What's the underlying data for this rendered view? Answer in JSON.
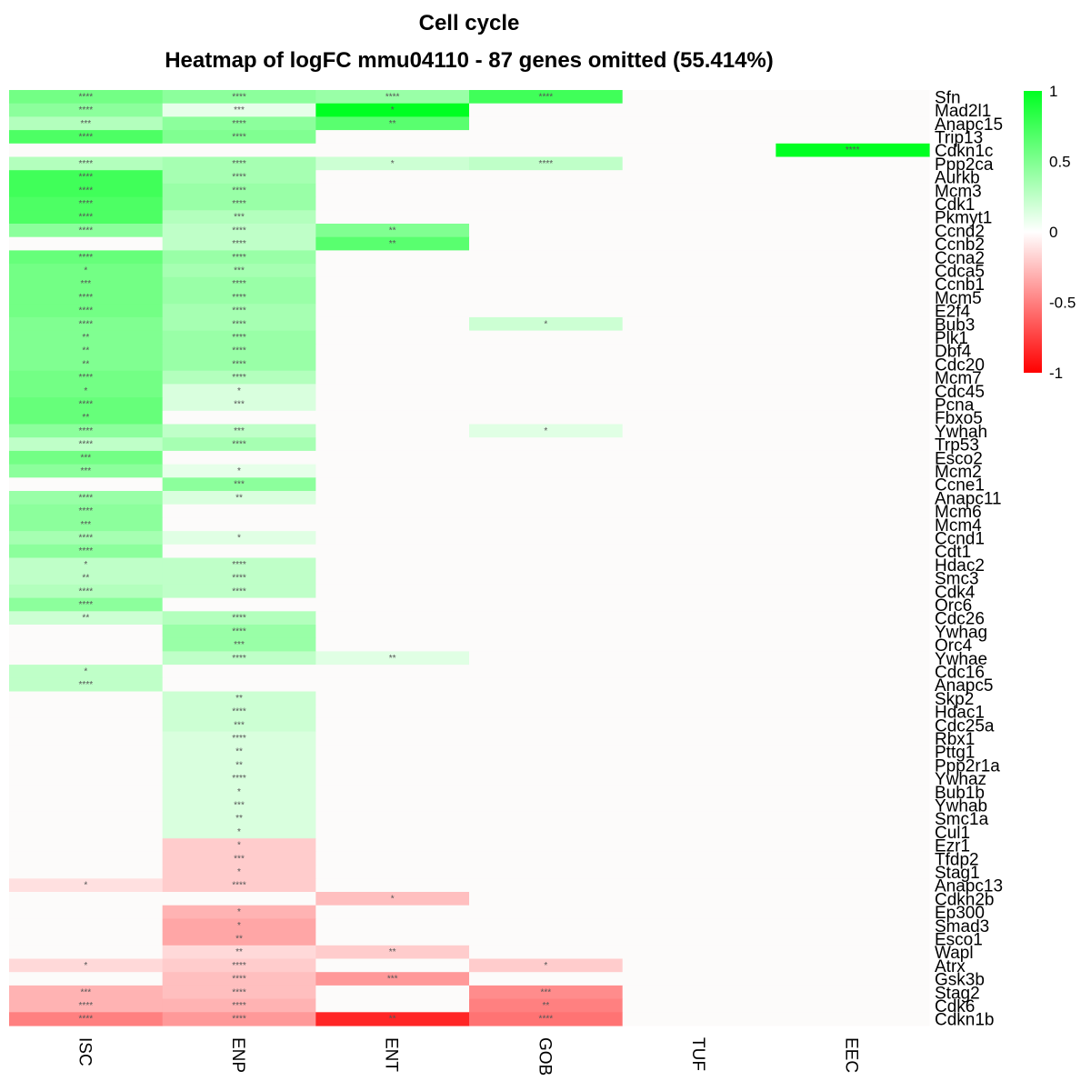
{
  "chart_data": {
    "type": "heatmap",
    "title": "Cell cycle",
    "subtitle": "Heatmap of logFC mmu04110 - 87 genes omitted (55.414%)",
    "columns": [
      "ISC",
      "ENP",
      "ENT",
      "GOB",
      "TUF",
      "EEC"
    ],
    "rows": [
      "Sfn",
      "Mad2l1",
      "Anapc15",
      "Trip13",
      "Cdkn1c",
      "Ppp2ca",
      "Aurkb",
      "Mcm3",
      "Cdk1",
      "Pkmyt1",
      "Ccnd2",
      "Ccnb2",
      "Ccna2",
      "Cdca5",
      "Ccnb1",
      "Mcm5",
      "E2f4",
      "Bub3",
      "Plk1",
      "Dbf4",
      "Cdc20",
      "Mcm7",
      "Cdc45",
      "Pcna",
      "Fbxo5",
      "Ywhah",
      "Trp53",
      "Esco2",
      "Mcm2",
      "Ccne1",
      "Anapc11",
      "Mcm6",
      "Mcm4",
      "Ccnd1",
      "Cdt1",
      "Hdac2",
      "Smc3",
      "Cdk4",
      "Orc6",
      "Cdc26",
      "Ywhag",
      "Orc4",
      "Ywhae",
      "Cdc16",
      "Anapc5",
      "Skp2",
      "Hdac1",
      "Cdc25a",
      "Rbx1",
      "Pttg1",
      "Ppp2r1a",
      "Ywhaz",
      "Bub1b",
      "Ywhab",
      "Smc1a",
      "Cul1",
      "Ezr1",
      "Tfdp2",
      "Stag1",
      "Anapc13",
      "Cdkn2b",
      "Ep300",
      "Smad3",
      "Esco1",
      "Wapl",
      "Atrx",
      "Gsk3b",
      "Stag2",
      "Cdk6",
      "Cdkn1b"
    ],
    "values": [
      [
        0.55,
        0.45,
        0.4,
        0.75,
        0,
        0
      ],
      [
        0.45,
        0.1,
        1.0,
        0,
        0,
        0
      ],
      [
        0.3,
        0.45,
        0.65,
        0,
        0,
        0
      ],
      [
        0.7,
        0.5,
        0,
        0,
        0,
        0
      ],
      [
        0,
        0,
        0,
        0,
        0,
        1.0
      ],
      [
        0.3,
        0.35,
        0.2,
        0.25,
        0,
        0
      ],
      [
        0.75,
        0.35,
        0,
        0,
        0,
        0
      ],
      [
        0.75,
        0.4,
        0,
        0,
        0,
        0
      ],
      [
        0.7,
        0.4,
        0,
        0,
        0,
        0
      ],
      [
        0.7,
        0.3,
        0,
        0,
        0,
        0
      ],
      [
        0.45,
        0.25,
        0.5,
        0,
        0,
        0
      ],
      [
        0,
        0.25,
        0.65,
        0,
        0,
        0
      ],
      [
        0.6,
        0.4,
        0,
        0,
        0,
        0
      ],
      [
        0.55,
        0.35,
        0,
        0,
        0,
        0
      ],
      [
        0.55,
        0.4,
        0,
        0,
        0,
        0
      ],
      [
        0.55,
        0.4,
        0,
        0,
        0,
        0
      ],
      [
        0.55,
        0.35,
        0,
        0,
        0,
        0
      ],
      [
        0.5,
        0.35,
        0,
        0.2,
        0,
        0
      ],
      [
        0.5,
        0.4,
        0,
        0,
        0,
        0
      ],
      [
        0.5,
        0.4,
        0,
        0,
        0,
        0
      ],
      [
        0.5,
        0.4,
        0,
        0,
        0,
        0
      ],
      [
        0.55,
        0.3,
        0,
        0,
        0,
        0
      ],
      [
        0.55,
        0.15,
        0,
        0,
        0,
        0
      ],
      [
        0.6,
        0.15,
        0,
        0,
        0,
        0
      ],
      [
        0.6,
        0,
        0,
        0,
        0,
        0
      ],
      [
        0.45,
        0.25,
        0,
        0.12,
        0,
        0
      ],
      [
        0.25,
        0.35,
        0,
        0,
        0,
        0
      ],
      [
        0.55,
        0,
        0,
        0,
        0,
        0
      ],
      [
        0.45,
        0.1,
        0,
        0,
        0,
        0
      ],
      [
        0,
        0.45,
        0,
        0,
        0,
        0
      ],
      [
        0.4,
        0.15,
        0,
        0,
        0,
        0
      ],
      [
        0.45,
        0,
        0,
        0,
        0,
        0
      ],
      [
        0.45,
        0,
        0,
        0,
        0,
        0
      ],
      [
        0.35,
        0.12,
        0,
        0,
        0,
        0
      ],
      [
        0.45,
        0,
        0,
        0,
        0,
        0
      ],
      [
        0.25,
        0.25,
        0,
        0,
        0,
        0
      ],
      [
        0.25,
        0.25,
        0,
        0,
        0,
        0
      ],
      [
        0.3,
        0.25,
        0,
        0,
        0,
        0
      ],
      [
        0.45,
        0,
        0,
        0,
        0,
        0
      ],
      [
        0.2,
        0.3,
        0,
        0,
        0,
        0
      ],
      [
        0,
        0.4,
        0,
        0,
        0,
        0
      ],
      [
        0,
        0.4,
        0,
        0,
        0,
        0
      ],
      [
        0,
        0.25,
        0.12,
        0,
        0,
        0
      ],
      [
        0.25,
        0,
        0,
        0,
        0,
        0
      ],
      [
        0.25,
        0,
        0,
        0,
        0,
        0
      ],
      [
        0,
        0.2,
        0,
        0,
        0,
        0
      ],
      [
        0,
        0.2,
        0,
        0,
        0,
        0
      ],
      [
        0,
        0.2,
        0,
        0,
        0,
        0
      ],
      [
        0,
        0.15,
        0,
        0,
        0,
        0
      ],
      [
        0,
        0.15,
        0,
        0,
        0,
        0
      ],
      [
        0,
        0.15,
        0,
        0,
        0,
        0
      ],
      [
        0,
        0.15,
        0,
        0,
        0,
        0
      ],
      [
        0,
        0.15,
        0,
        0,
        0,
        0
      ],
      [
        0,
        0.15,
        0,
        0,
        0,
        0
      ],
      [
        0,
        0.15,
        0,
        0,
        0,
        0
      ],
      [
        0,
        0.15,
        0,
        0,
        0,
        0
      ],
      [
        0,
        -0.2,
        0,
        0,
        0,
        0
      ],
      [
        0,
        -0.2,
        0,
        0,
        0,
        0
      ],
      [
        0,
        -0.2,
        0,
        0,
        0,
        0
      ],
      [
        -0.12,
        -0.2,
        0,
        0,
        0,
        0
      ],
      [
        0,
        0,
        -0.25,
        0,
        0,
        0
      ],
      [
        0,
        -0.3,
        0,
        0,
        0,
        0
      ],
      [
        0,
        -0.35,
        0,
        0,
        0,
        0
      ],
      [
        0,
        -0.35,
        0,
        0,
        0,
        0
      ],
      [
        0,
        -0.15,
        -0.2,
        0,
        0,
        0
      ],
      [
        -0.15,
        -0.2,
        0,
        -0.2,
        0,
        0
      ],
      [
        0,
        -0.25,
        -0.4,
        0,
        0,
        0
      ],
      [
        -0.3,
        -0.25,
        0,
        -0.45,
        0,
        0
      ],
      [
        -0.3,
        -0.3,
        0,
        -0.5,
        0,
        0
      ],
      [
        -0.5,
        -0.4,
        -0.85,
        -0.55,
        0,
        0
      ]
    ],
    "significance": [
      [
        "****",
        "****",
        "****",
        "****",
        "",
        ""
      ],
      [
        "****",
        "***",
        "*",
        "",
        "",
        ""
      ],
      [
        "***",
        "****",
        "**",
        "",
        "",
        ""
      ],
      [
        "****",
        "****",
        "",
        "",
        "",
        ""
      ],
      [
        "",
        "",
        "",
        "",
        "",
        "****"
      ],
      [
        "****",
        "****",
        "*",
        "****",
        "",
        ""
      ],
      [
        "****",
        "****",
        "",
        "",
        "",
        ""
      ],
      [
        "****",
        "****",
        "",
        "",
        "",
        ""
      ],
      [
        "****",
        "****",
        "",
        "",
        "",
        ""
      ],
      [
        "****",
        "***",
        "",
        "",
        "",
        ""
      ],
      [
        "****",
        "****",
        "**",
        "",
        "",
        ""
      ],
      [
        "",
        "****",
        "**",
        "",
        "",
        ""
      ],
      [
        "****",
        "****",
        "",
        "",
        "",
        ""
      ],
      [
        "*",
        "***",
        "",
        "",
        "",
        ""
      ],
      [
        "***",
        "****",
        "",
        "",
        "",
        ""
      ],
      [
        "****",
        "****",
        "",
        "",
        "",
        ""
      ],
      [
        "****",
        "****",
        "",
        "",
        "",
        ""
      ],
      [
        "****",
        "****",
        "",
        "*",
        "",
        ""
      ],
      [
        "**",
        "****",
        "",
        "",
        "",
        ""
      ],
      [
        "**",
        "****",
        "",
        "",
        "",
        ""
      ],
      [
        "**",
        "****",
        "",
        "",
        "",
        ""
      ],
      [
        "****",
        "****",
        "",
        "",
        "",
        ""
      ],
      [
        "*",
        "*",
        "",
        "",
        "",
        ""
      ],
      [
        "****",
        "***",
        "",
        "",
        "",
        ""
      ],
      [
        "**",
        "",
        "",
        "",
        "",
        ""
      ],
      [
        "****",
        "***",
        "",
        "*",
        "",
        ""
      ],
      [
        "****",
        "****",
        "",
        "",
        "",
        ""
      ],
      [
        "***",
        "",
        "",
        "",
        "",
        ""
      ],
      [
        "***",
        "*",
        "",
        "",
        "",
        ""
      ],
      [
        "",
        "***",
        "",
        "",
        "",
        ""
      ],
      [
        "****",
        "**",
        "",
        "",
        "",
        ""
      ],
      [
        "****",
        "",
        "",
        "",
        "",
        ""
      ],
      [
        "***",
        "",
        "",
        "",
        "",
        ""
      ],
      [
        "****",
        "*",
        "",
        "",
        "",
        ""
      ],
      [
        "****",
        "",
        "",
        "",
        "",
        ""
      ],
      [
        "*",
        "****",
        "",
        "",
        "",
        ""
      ],
      [
        "**",
        "****",
        "",
        "",
        "",
        ""
      ],
      [
        "****",
        "****",
        "",
        "",
        "",
        ""
      ],
      [
        "****",
        "",
        "",
        "",
        "",
        ""
      ],
      [
        "**",
        "****",
        "",
        "",
        "",
        ""
      ],
      [
        "",
        "****",
        "",
        "",
        "",
        ""
      ],
      [
        "",
        "***",
        "",
        "",
        "",
        ""
      ],
      [
        "",
        "****",
        "**",
        "",
        "",
        ""
      ],
      [
        "*",
        "",
        "",
        "",
        "",
        ""
      ],
      [
        "****",
        "",
        "",
        "",
        "",
        ""
      ],
      [
        "",
        "**",
        "",
        "",
        "",
        ""
      ],
      [
        "",
        "****",
        "",
        "",
        "",
        ""
      ],
      [
        "",
        "***",
        "",
        "",
        "",
        ""
      ],
      [
        "",
        "****",
        "",
        "",
        "",
        ""
      ],
      [
        "",
        "**",
        "",
        "",
        "",
        ""
      ],
      [
        "",
        "**",
        "",
        "",
        "",
        ""
      ],
      [
        "",
        "****",
        "",
        "",
        "",
        ""
      ],
      [
        "",
        "*",
        "",
        "",
        "",
        ""
      ],
      [
        "",
        "***",
        "",
        "",
        "",
        ""
      ],
      [
        "",
        "**",
        "",
        "",
        "",
        ""
      ],
      [
        "",
        "*",
        "",
        "",
        "",
        ""
      ],
      [
        "",
        "*",
        "",
        "",
        "",
        ""
      ],
      [
        "",
        "***",
        "",
        "",
        "",
        ""
      ],
      [
        "",
        "*",
        "",
        "",
        "",
        ""
      ],
      [
        "*",
        "****",
        "",
        "",
        "",
        ""
      ],
      [
        "",
        "",
        "*",
        "",
        "",
        ""
      ],
      [
        "",
        "*",
        "",
        "",
        "",
        ""
      ],
      [
        "",
        "*",
        "",
        "",
        "",
        ""
      ],
      [
        "",
        "**",
        "",
        "",
        "",
        ""
      ],
      [
        "",
        "**",
        "**",
        "",
        "",
        ""
      ],
      [
        "*",
        "****",
        "",
        "*",
        "",
        ""
      ],
      [
        "",
        "****",
        "***",
        "",
        "",
        ""
      ],
      [
        "***",
        "****",
        "",
        "***",
        "",
        ""
      ],
      [
        "****",
        "****",
        "",
        "**",
        "",
        ""
      ],
      [
        "****",
        "****",
        "**",
        "****",
        "",
        ""
      ]
    ],
    "color_scale": {
      "low": "#ff0000",
      "mid": "#ffffff",
      "high": "#00ff22",
      "zero_cell": "#fcfbfa"
    },
    "legend": {
      "ticks": [
        1,
        0.5,
        0,
        -0.5,
        -1
      ],
      "tick_labels": [
        "1",
        "0.5",
        "0",
        "-0.5",
        "-1"
      ],
      "position": "top-right"
    },
    "zlim": [
      -1,
      1
    ]
  }
}
